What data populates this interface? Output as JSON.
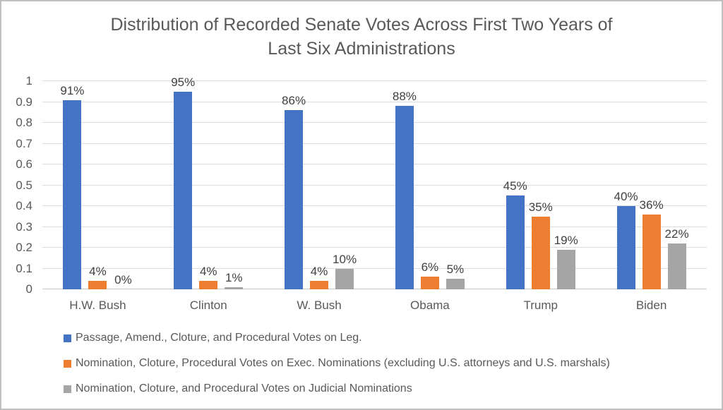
{
  "chart_data": {
    "type": "bar",
    "title": "Distribution of Recorded Senate Votes Across First Two Years of Last Six Administrations",
    "title_lines": [
      "Distribution of Recorded Senate Votes Across First Two Years of",
      "Last Six Administrations"
    ],
    "categories": [
      "H.W. Bush",
      "Clinton",
      "W. Bush",
      "Obama",
      "Trump",
      "Biden"
    ],
    "series": [
      {
        "id": "legislation",
        "name": "Passage, Amend., Cloture, and Procedural Votes on Leg.",
        "color": "#4472C4",
        "values": [
          0.91,
          0.95,
          0.86,
          0.88,
          0.45,
          0.4
        ],
        "labels": [
          "91%",
          "95%",
          "86%",
          "88%",
          "45%",
          "40%"
        ]
      },
      {
        "id": "executive-nominations",
        "name": "Nomination, Cloture, Procedural Votes on Exec. Nominations (excluding U.S. attorneys and U.S. marshals)",
        "color": "#ED7D31",
        "values": [
          0.04,
          0.04,
          0.04,
          0.06,
          0.35,
          0.36
        ],
        "labels": [
          "4%",
          "4%",
          "4%",
          "6%",
          "35%",
          "36%"
        ]
      },
      {
        "id": "judicial-nominations",
        "name": "Nomination, Cloture, and Procedural Votes on Judicial Nominations",
        "color": "#A5A5A5",
        "values": [
          0.0,
          0.01,
          0.1,
          0.05,
          0.19,
          0.22
        ],
        "labels": [
          "0%",
          "1%",
          "10%",
          "5%",
          "19%",
          "22%"
        ]
      }
    ],
    "ylim": [
      0,
      1
    ],
    "yticks": [
      "0",
      "0.1",
      "0.2",
      "0.3",
      "0.4",
      "0.5",
      "0.6",
      "0.7",
      "0.8",
      "0.9",
      "1"
    ],
    "grid": true,
    "legend_position": "bottom-left"
  },
  "colors": {
    "frame_border": "#bfbfbf",
    "gridline": "#dcdcdc",
    "axis_text": "#595959",
    "data_label_text": "#404040",
    "title_text": "#595959"
  }
}
